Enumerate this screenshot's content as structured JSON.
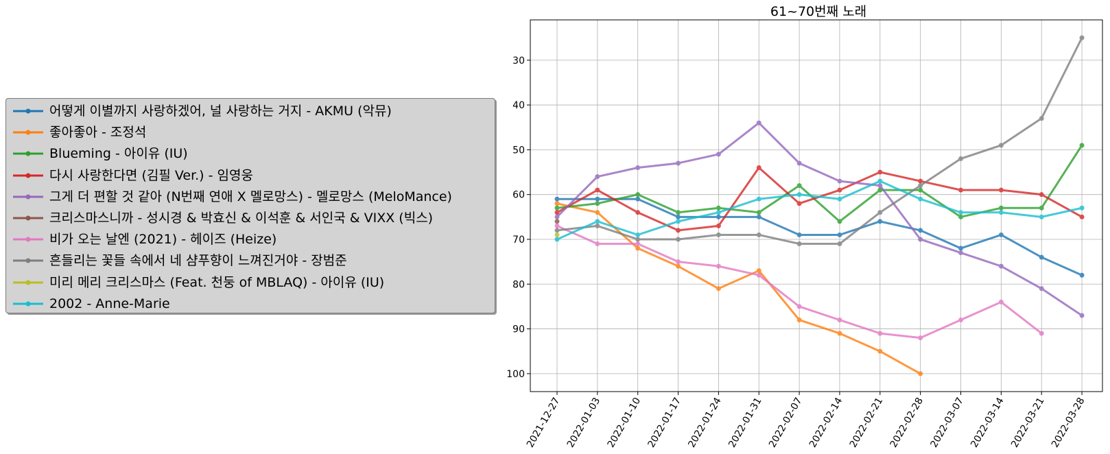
{
  "chart_data": {
    "type": "line",
    "title": "61~70번째 노래",
    "xlabel": "",
    "ylabel": "",
    "y_inverted": true,
    "ylim": [
      104,
      21
    ],
    "yticks": [
      30,
      40,
      50,
      60,
      70,
      80,
      90,
      100
    ],
    "grid": true,
    "legend_position": "left",
    "x": [
      "2021-12-27",
      "2022-01-03",
      "2022-01-10",
      "2022-01-17",
      "2022-01-24",
      "2022-01-31",
      "2022-02-07",
      "2022-02-14",
      "2022-02-21",
      "2022-02-28",
      "2022-03-07",
      "2022-03-14",
      "2022-03-21",
      "2022-03-28"
    ],
    "series": [
      {
        "name": "어떻게 이별까지 사랑하겠어, 널 사랑하는 거지 - AKMU (악뮤)",
        "color": "#1f77b4",
        "values": [
          61,
          61,
          61,
          65,
          65,
          65,
          69,
          69,
          66,
          68,
          72,
          69,
          74,
          78
        ]
      },
      {
        "name": "좋아좋아 - 조정석",
        "color": "#ff7f0e",
        "values": [
          62,
          64,
          72,
          76,
          81,
          77,
          88,
          91,
          95,
          100,
          null,
          null,
          null,
          null
        ]
      },
      {
        "name": "Blueming - 아이유 (IU)",
        "color": "#2ca02c",
        "values": [
          63,
          62,
          60,
          64,
          63,
          64,
          58,
          66,
          59,
          59,
          65,
          63,
          63,
          49
        ]
      },
      {
        "name": "다시 사랑한다면 (김필 Ver.) - 임영웅",
        "color": "#d62728",
        "values": [
          64,
          59,
          64,
          68,
          67,
          54,
          62,
          59,
          55,
          57,
          59,
          59,
          60,
          65
        ]
      },
      {
        "name": "그게 더 편할 것 같아 (N번째 연애 X 멜로망스) - 멜로망스 (MeloMance)",
        "color": "#9467bd",
        "values": [
          65,
          56,
          54,
          53,
          51,
          44,
          53,
          57,
          58,
          70,
          73,
          76,
          81,
          87
        ]
      },
      {
        "name": "크리스마스니까 - 성시경 & 박효신 & 이석훈 & 서인국 & VIXX (빅스)",
        "color": "#8c564b",
        "values": [
          66,
          null,
          null,
          null,
          null,
          null,
          null,
          null,
          null,
          null,
          null,
          null,
          null,
          null
        ]
      },
      {
        "name": "비가 오는 날엔 (2021) - 헤이즈 (Heize)",
        "color": "#e377c2",
        "values": [
          67,
          71,
          71,
          75,
          76,
          78,
          85,
          88,
          91,
          92,
          88,
          84,
          91,
          null
        ]
      },
      {
        "name": "흔들리는 꽃들 속에서 네 샴푸향이 느껴진거야 - 장범준",
        "color": "#7f7f7f",
        "values": [
          68,
          67,
          70,
          70,
          69,
          69,
          71,
          71,
          64,
          58,
          52,
          49,
          43,
          25
        ]
      },
      {
        "name": "미리 메리 크리스마스 (Feat. 천둥 of MBLAQ) - 아이유 (IU)",
        "color": "#bcbd22",
        "values": [
          69,
          null,
          null,
          null,
          null,
          null,
          null,
          null,
          null,
          null,
          null,
          null,
          null,
          null
        ]
      },
      {
        "name": "2002 - Anne-Marie",
        "color": "#17becf",
        "values": [
          70,
          66,
          69,
          66,
          64,
          61,
          60,
          61,
          57,
          61,
          64,
          64,
          65,
          63
        ]
      }
    ]
  }
}
